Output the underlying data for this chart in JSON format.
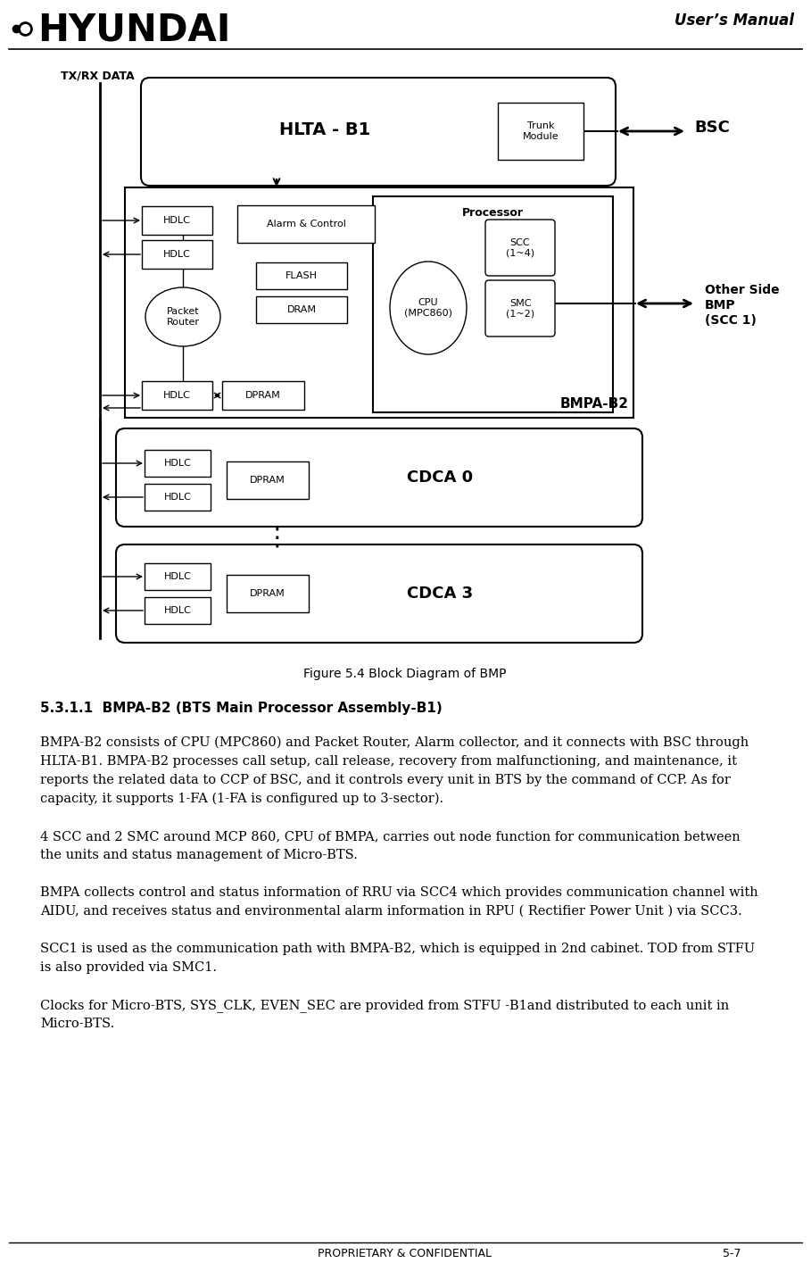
{
  "title_right": "User’s Manual",
  "figure_caption": "Figure 5.4 Block Diagram of BMP",
  "section_heading": "5.3.1.1  BMPA-B2 (BTS Main Processor Assembly-B1)",
  "para1_lines": [
    "BMPA-B2 consists of CPU (MPC860) and Packet Router, Alarm collector, and it connects with BSC through",
    "HLTA-B1. BMPA-B2 processes call setup, call release, recovery from malfunctioning, and maintenance, it",
    "reports the related data to CCP of BSC, and it controls every unit in BTS by the command of CCP. As for",
    "capacity, it supports 1-FA (1-FA is configured up to 3-sector)."
  ],
  "para2_lines": [
    "4 SCC and 2 SMC around MCP 860, CPU of BMPA, carries out node function for communication between",
    "the units and status management of Micro-BTS."
  ],
  "para3_lines": [
    "BMPA collects control and status information of RRU via SCC4 which provides communication channel with",
    "AIDU, and receives status and environmental alarm information in RPU ( Rectifier Power Unit ) via SCC3."
  ],
  "para4_lines": [
    "SCC1 is used as the communication path with BMPA-B2, which is equipped in 2nd cabinet. TOD from STFU",
    "is also provided via SMC1."
  ],
  "para5_lines": [
    "Clocks for Micro-BTS, SYS_CLK, EVEN_SEC are provided from STFU -B1and distributed to each unit in",
    "Micro-BTS."
  ],
  "footer_left": "PROPRIETARY & CONFIDENTIAL",
  "footer_right": "5-7"
}
